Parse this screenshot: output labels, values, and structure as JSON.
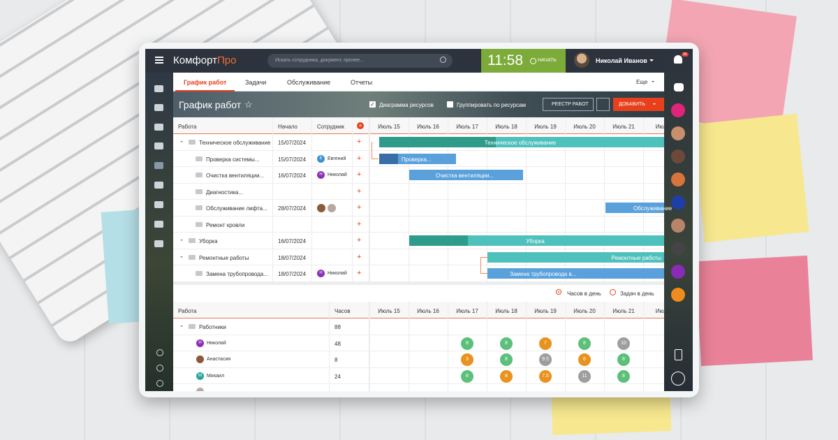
{
  "app": {
    "logo_main": "Комфорт",
    "logo_accent": "Про",
    "search_placeholder": "Искать сотрудника, документ, прочее...",
    "clock": "11:58",
    "start_button": "НАЧАТЬ",
    "user_name": "Николай Иванов",
    "notification_count": "35"
  },
  "tabs": [
    "График работ",
    "Задачи",
    "Обслуживание",
    "Отчеты"
  ],
  "more": "Еще",
  "toolbar": {
    "title": "График работ",
    "resource_chart": "Диаграмма ресурсов",
    "group_by_resources": "Группировать по ресурсам",
    "registry_button": "РЕЕСТР РАБОТ",
    "add_button": "ДОБАВИТЬ"
  },
  "schedule": {
    "columns": [
      "Работа",
      "Начало",
      "Сотрудник"
    ],
    "days": [
      "Июль 15",
      "Июль 16",
      "Июль 17",
      "Июль 18",
      "Июль 19",
      "Июль 20",
      "Июль 21",
      "Июль"
    ],
    "rows": [
      {
        "name": "Техническое обслуживание",
        "start": "15/07/2024",
        "bar_label": "Техническое обслуживание"
      },
      {
        "name": "Проверка системы...",
        "start": "15/07/2024",
        "employee": "Евгений",
        "bar_label": "Проверка..."
      },
      {
        "name": "Очистка вентиляции...",
        "start": "16/07/2024",
        "employee": "Николай",
        "bar_label": "Очистка вентиляции..."
      },
      {
        "name": "Диагностика..."
      },
      {
        "name": "Обслуживание лифта...",
        "start": "28/07/2024",
        "bar_label": "Обслуживание"
      },
      {
        "name": "Ремонт кровли"
      },
      {
        "name": "Уборка",
        "start": "16/07/2024",
        "bar_label": "Уборка"
      },
      {
        "name": "Ремонтные работы",
        "start": "18/07/2024",
        "bar_label": "Ремонтные работы"
      },
      {
        "name": "Замена трубопровода...",
        "start": "18/07/2024",
        "employee": "Николай",
        "bar_label": "Замена трубопровода в..."
      }
    ]
  },
  "resources": {
    "options": [
      "Часов в день",
      "Задач в день"
    ],
    "columns": [
      "Работа",
      "Часов"
    ],
    "days": [
      "Июль 15",
      "Июль 16",
      "Июль 17",
      "Июль 18",
      "Июль 19",
      "Июль 20",
      "Июль 21",
      "Июль"
    ],
    "rows": [
      {
        "name": "Работники",
        "hours": 88
      },
      {
        "name": "Николай",
        "hours": 48,
        "hours_by_day": [
          null,
          null,
          8,
          8,
          7,
          8,
          10
        ],
        "colors": [
          null,
          null,
          "#5cbf7a",
          "#5cbf7a",
          "#e8921f",
          "#5cbf7a",
          "#9e9e9e"
        ]
      },
      {
        "name": "Анастасия",
        "hours": 8,
        "hours_by_day": [
          null,
          null,
          3,
          8,
          9.5,
          6,
          8
        ],
        "colors": [
          null,
          null,
          "#e8921f",
          "#5cbf7a",
          "#9e9e9e",
          "#e8921f",
          "#5cbf7a"
        ]
      },
      {
        "name": "Михаил",
        "hours": 24,
        "hours_by_day": [
          null,
          null,
          8,
          8,
          7.5,
          11,
          8
        ],
        "colors": [
          null,
          null,
          "#5cbf7a",
          "#e8921f",
          "#e8921f",
          "#9e9e9e",
          "#5cbf7a"
        ]
      }
    ]
  }
}
